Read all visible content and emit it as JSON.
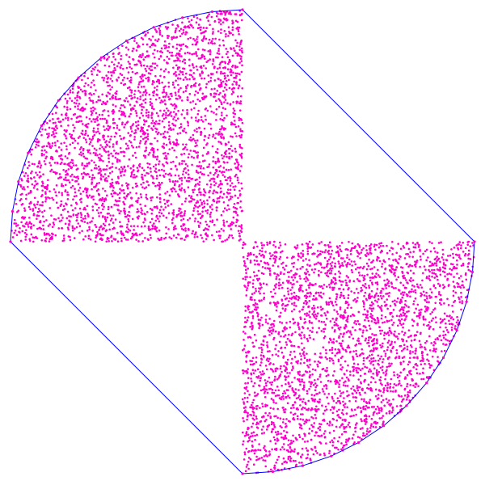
{
  "visualization": {
    "kind": "convex-hull-of-random-points",
    "quadrants_filled": [
      "upper-left",
      "lower-right"
    ],
    "point_count_per_quadrant": 3000,
    "hull_vertex_count": 26,
    "colors": {
      "background": "#ffffff",
      "points": "#ff00cc",
      "hull": "#0000ff"
    }
  }
}
